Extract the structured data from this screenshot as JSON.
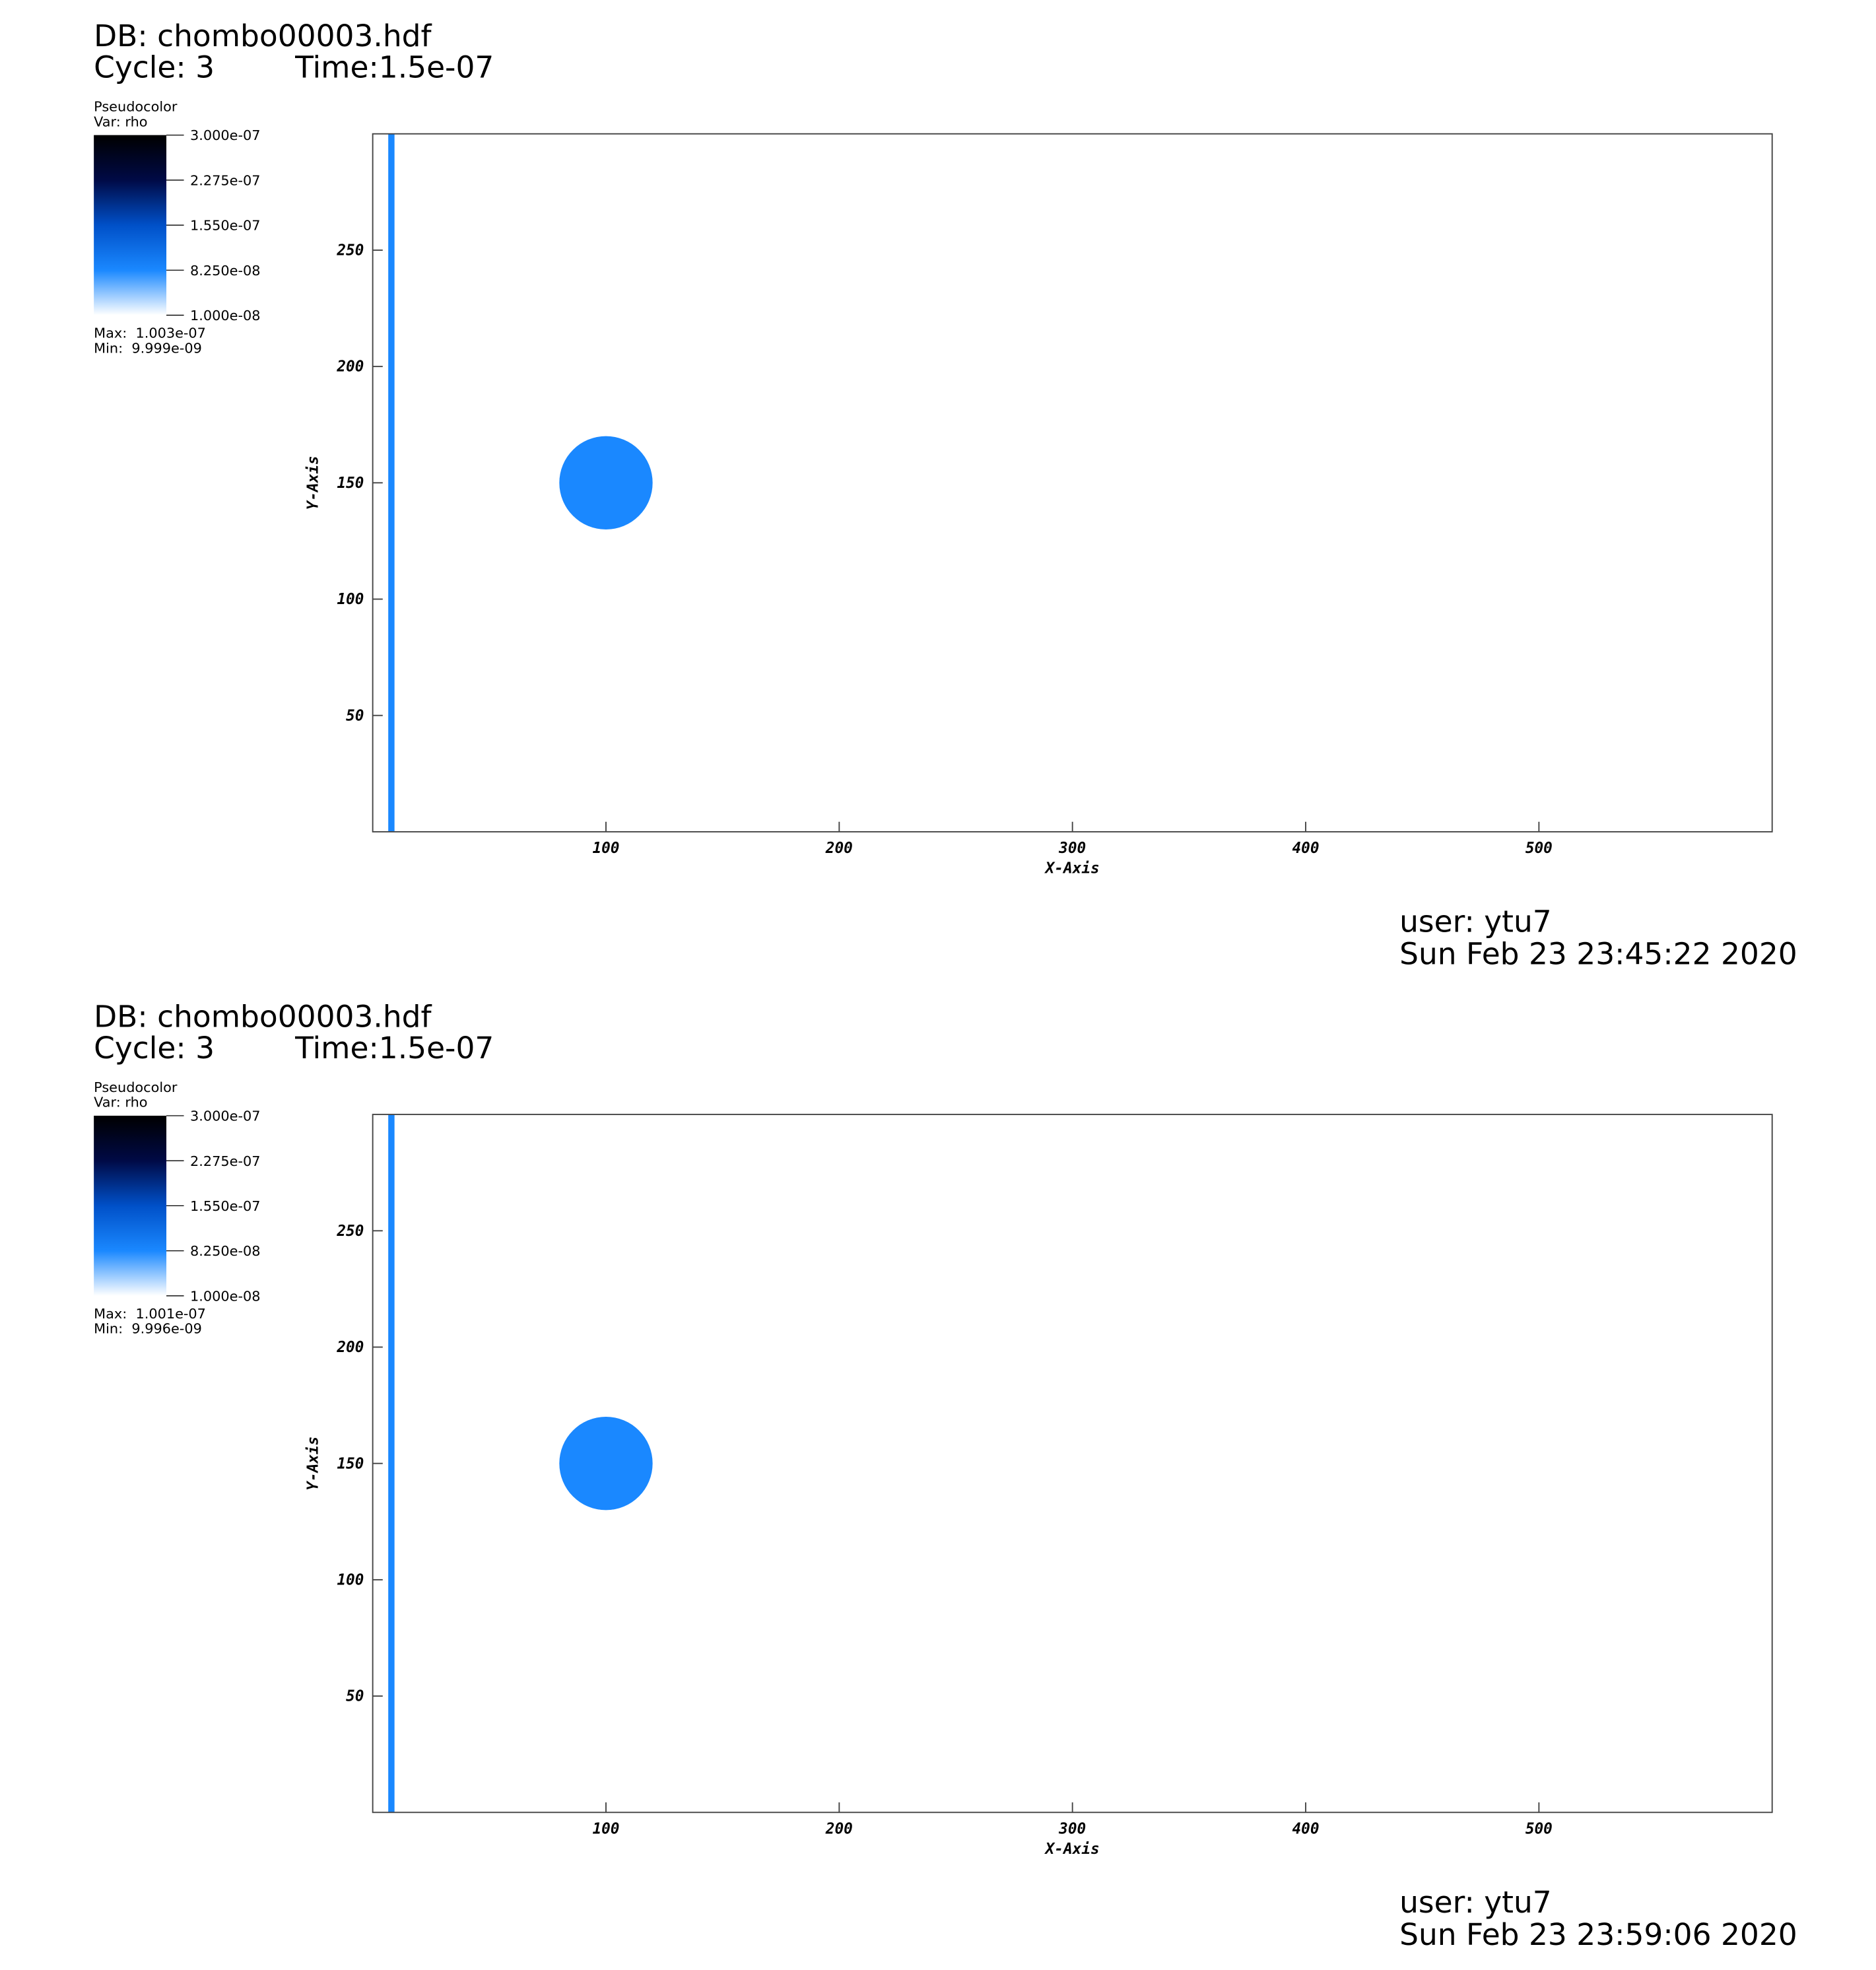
{
  "chart_data": [
    {
      "type": "pseudocolor",
      "title": "DB: chombo00003.hdf",
      "cycle": "Cycle: 3",
      "time": "Time:1.5e-07",
      "legend_title": "Pseudocolor",
      "variable": "Var: rho",
      "colorbar": {
        "lim": [
          1e-08,
          3e-07
        ],
        "ticks": [
          {
            "value": 3e-07,
            "label": "3.000e-07"
          },
          {
            "value": 2.275e-07,
            "label": "2.275e-07"
          },
          {
            "value": 1.55e-07,
            "label": "1.550e-07"
          },
          {
            "value": 8.25e-08,
            "label": "8.250e-08"
          },
          {
            "value": 1e-08,
            "label": "1.000e-08"
          }
        ],
        "colors": [
          "#ffffff",
          "#1a88ff",
          "#0050c8",
          "#000a46",
          "#000000"
        ]
      },
      "max": "Max:  1.003e-07",
      "min": "Min:  9.999e-09",
      "xlabel": "X-Axis",
      "ylabel": "Y-Axis",
      "xlim": [
        0,
        600
      ],
      "ylim": [
        0,
        300
      ],
      "xticks": [
        100,
        200,
        300,
        400,
        500
      ],
      "yticks": [
        50,
        100,
        150,
        200,
        250
      ],
      "circle": {
        "x": 100,
        "y": 150,
        "radius": 20,
        "color": "#1a88ff"
      },
      "band": {
        "x": 8,
        "color": "#1a88ff"
      },
      "user": "user: ytu7",
      "date": "Sun Feb 23 23:45:22 2020"
    },
    {
      "type": "pseudocolor",
      "title": "DB: chombo00003.hdf",
      "cycle": "Cycle: 3",
      "time": "Time:1.5e-07",
      "legend_title": "Pseudocolor",
      "variable": "Var: rho",
      "colorbar": {
        "lim": [
          1e-08,
          3e-07
        ],
        "ticks": [
          {
            "value": 3e-07,
            "label": "3.000e-07"
          },
          {
            "value": 2.275e-07,
            "label": "2.275e-07"
          },
          {
            "value": 1.55e-07,
            "label": "1.550e-07"
          },
          {
            "value": 8.25e-08,
            "label": "8.250e-08"
          },
          {
            "value": 1e-08,
            "label": "1.000e-08"
          }
        ],
        "colors": [
          "#ffffff",
          "#1a88ff",
          "#0050c8",
          "#000a46",
          "#000000"
        ]
      },
      "max": "Max:  1.001e-07",
      "min": "Min:  9.996e-09",
      "xlabel": "X-Axis",
      "ylabel": "Y-Axis",
      "xlim": [
        0,
        600
      ],
      "ylim": [
        0,
        300
      ],
      "xticks": [
        100,
        200,
        300,
        400,
        500
      ],
      "yticks": [
        50,
        100,
        150,
        200,
        250
      ],
      "circle": {
        "x": 100,
        "y": 150,
        "radius": 20,
        "color": "#1a88ff"
      },
      "band": {
        "x": 8,
        "color": "#1a88ff"
      },
      "user": "user: ytu7",
      "date": "Sun Feb 23 23:59:06 2020"
    }
  ]
}
